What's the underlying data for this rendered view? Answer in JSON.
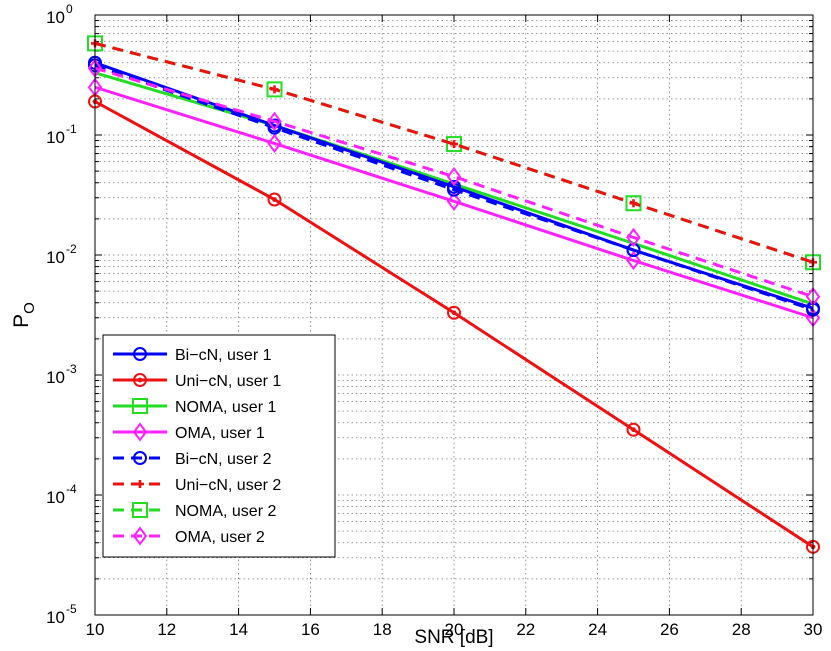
{
  "chart_data": {
    "type": "line",
    "title": "",
    "xlabel": "SNR [dB]",
    "ylabel_main": "P",
    "ylabel_sub": "O",
    "xscale": "linear",
    "yscale": "log",
    "xlim": [
      10,
      30
    ],
    "ylim": [
      1e-05,
      1
    ],
    "xticks": [
      10,
      12,
      14,
      16,
      18,
      20,
      22,
      24,
      26,
      28,
      30
    ],
    "xtick_labels": [
      "10",
      "12",
      "14",
      "16",
      "18",
      "20",
      "22",
      "24",
      "26",
      "28",
      "30"
    ],
    "yticks": [
      {
        "value": 1,
        "base": "10",
        "exp": "0"
      },
      {
        "value": 0.1,
        "base": "10",
        "exp": "-1"
      },
      {
        "value": 0.01,
        "base": "10",
        "exp": "-2"
      },
      {
        "value": 0.001,
        "base": "10",
        "exp": "-3"
      },
      {
        "value": 0.0001,
        "base": "10",
        "exp": "-4"
      },
      {
        "value": 1e-05,
        "base": "10",
        "exp": "-5"
      }
    ],
    "grid": true,
    "legend_position": "bottom-left",
    "x": [
      10,
      15,
      20,
      25,
      30
    ],
    "series": [
      {
        "name": "Bi−cN, user 1",
        "color": "#0000ff",
        "dash": "solid",
        "marker": "circle",
        "values": [
          0.4,
          0.12,
          0.037,
          0.011,
          0.0036
        ]
      },
      {
        "name": "Uni−cN, user 1",
        "color": "#ee1111",
        "dash": "solid",
        "marker": "circle-dot",
        "values": [
          0.19,
          0.029,
          0.0033,
          0.00035,
          3.7e-05
        ]
      },
      {
        "name": "NOMA, user 1",
        "color": "#22dd22",
        "dash": "solid",
        "marker": "none",
        "values": [
          0.33,
          0.12,
          0.039,
          0.0125,
          0.0039
        ]
      },
      {
        "name": "OMA, user 1",
        "color": "#ff22ff",
        "dash": "solid",
        "marker": "diamond",
        "values": [
          0.25,
          0.085,
          0.028,
          0.009,
          0.003
        ]
      },
      {
        "name": "Bi−cN, user 2",
        "color": "#0000ff",
        "dash": "dashed",
        "marker": "circle",
        "values": [
          0.38,
          0.115,
          0.035,
          0.011,
          0.0035
        ]
      },
      {
        "name": "Uni−cN, user 2",
        "color": "#ee1111",
        "dash": "dashed",
        "marker": "plus",
        "values": [
          0.58,
          0.24,
          0.084,
          0.027,
          0.0087
        ]
      },
      {
        "name": "NOMA, user 2",
        "color": "#22dd22",
        "dash": "dashed",
        "marker": "square",
        "values": [
          0.58,
          0.24,
          0.084,
          0.027,
          0.0087
        ]
      },
      {
        "name": "OMA, user 2",
        "color": "#ff22ff",
        "dash": "dashed",
        "marker": "diamond",
        "values": [
          0.36,
          0.13,
          0.045,
          0.014,
          0.0045
        ]
      }
    ]
  }
}
